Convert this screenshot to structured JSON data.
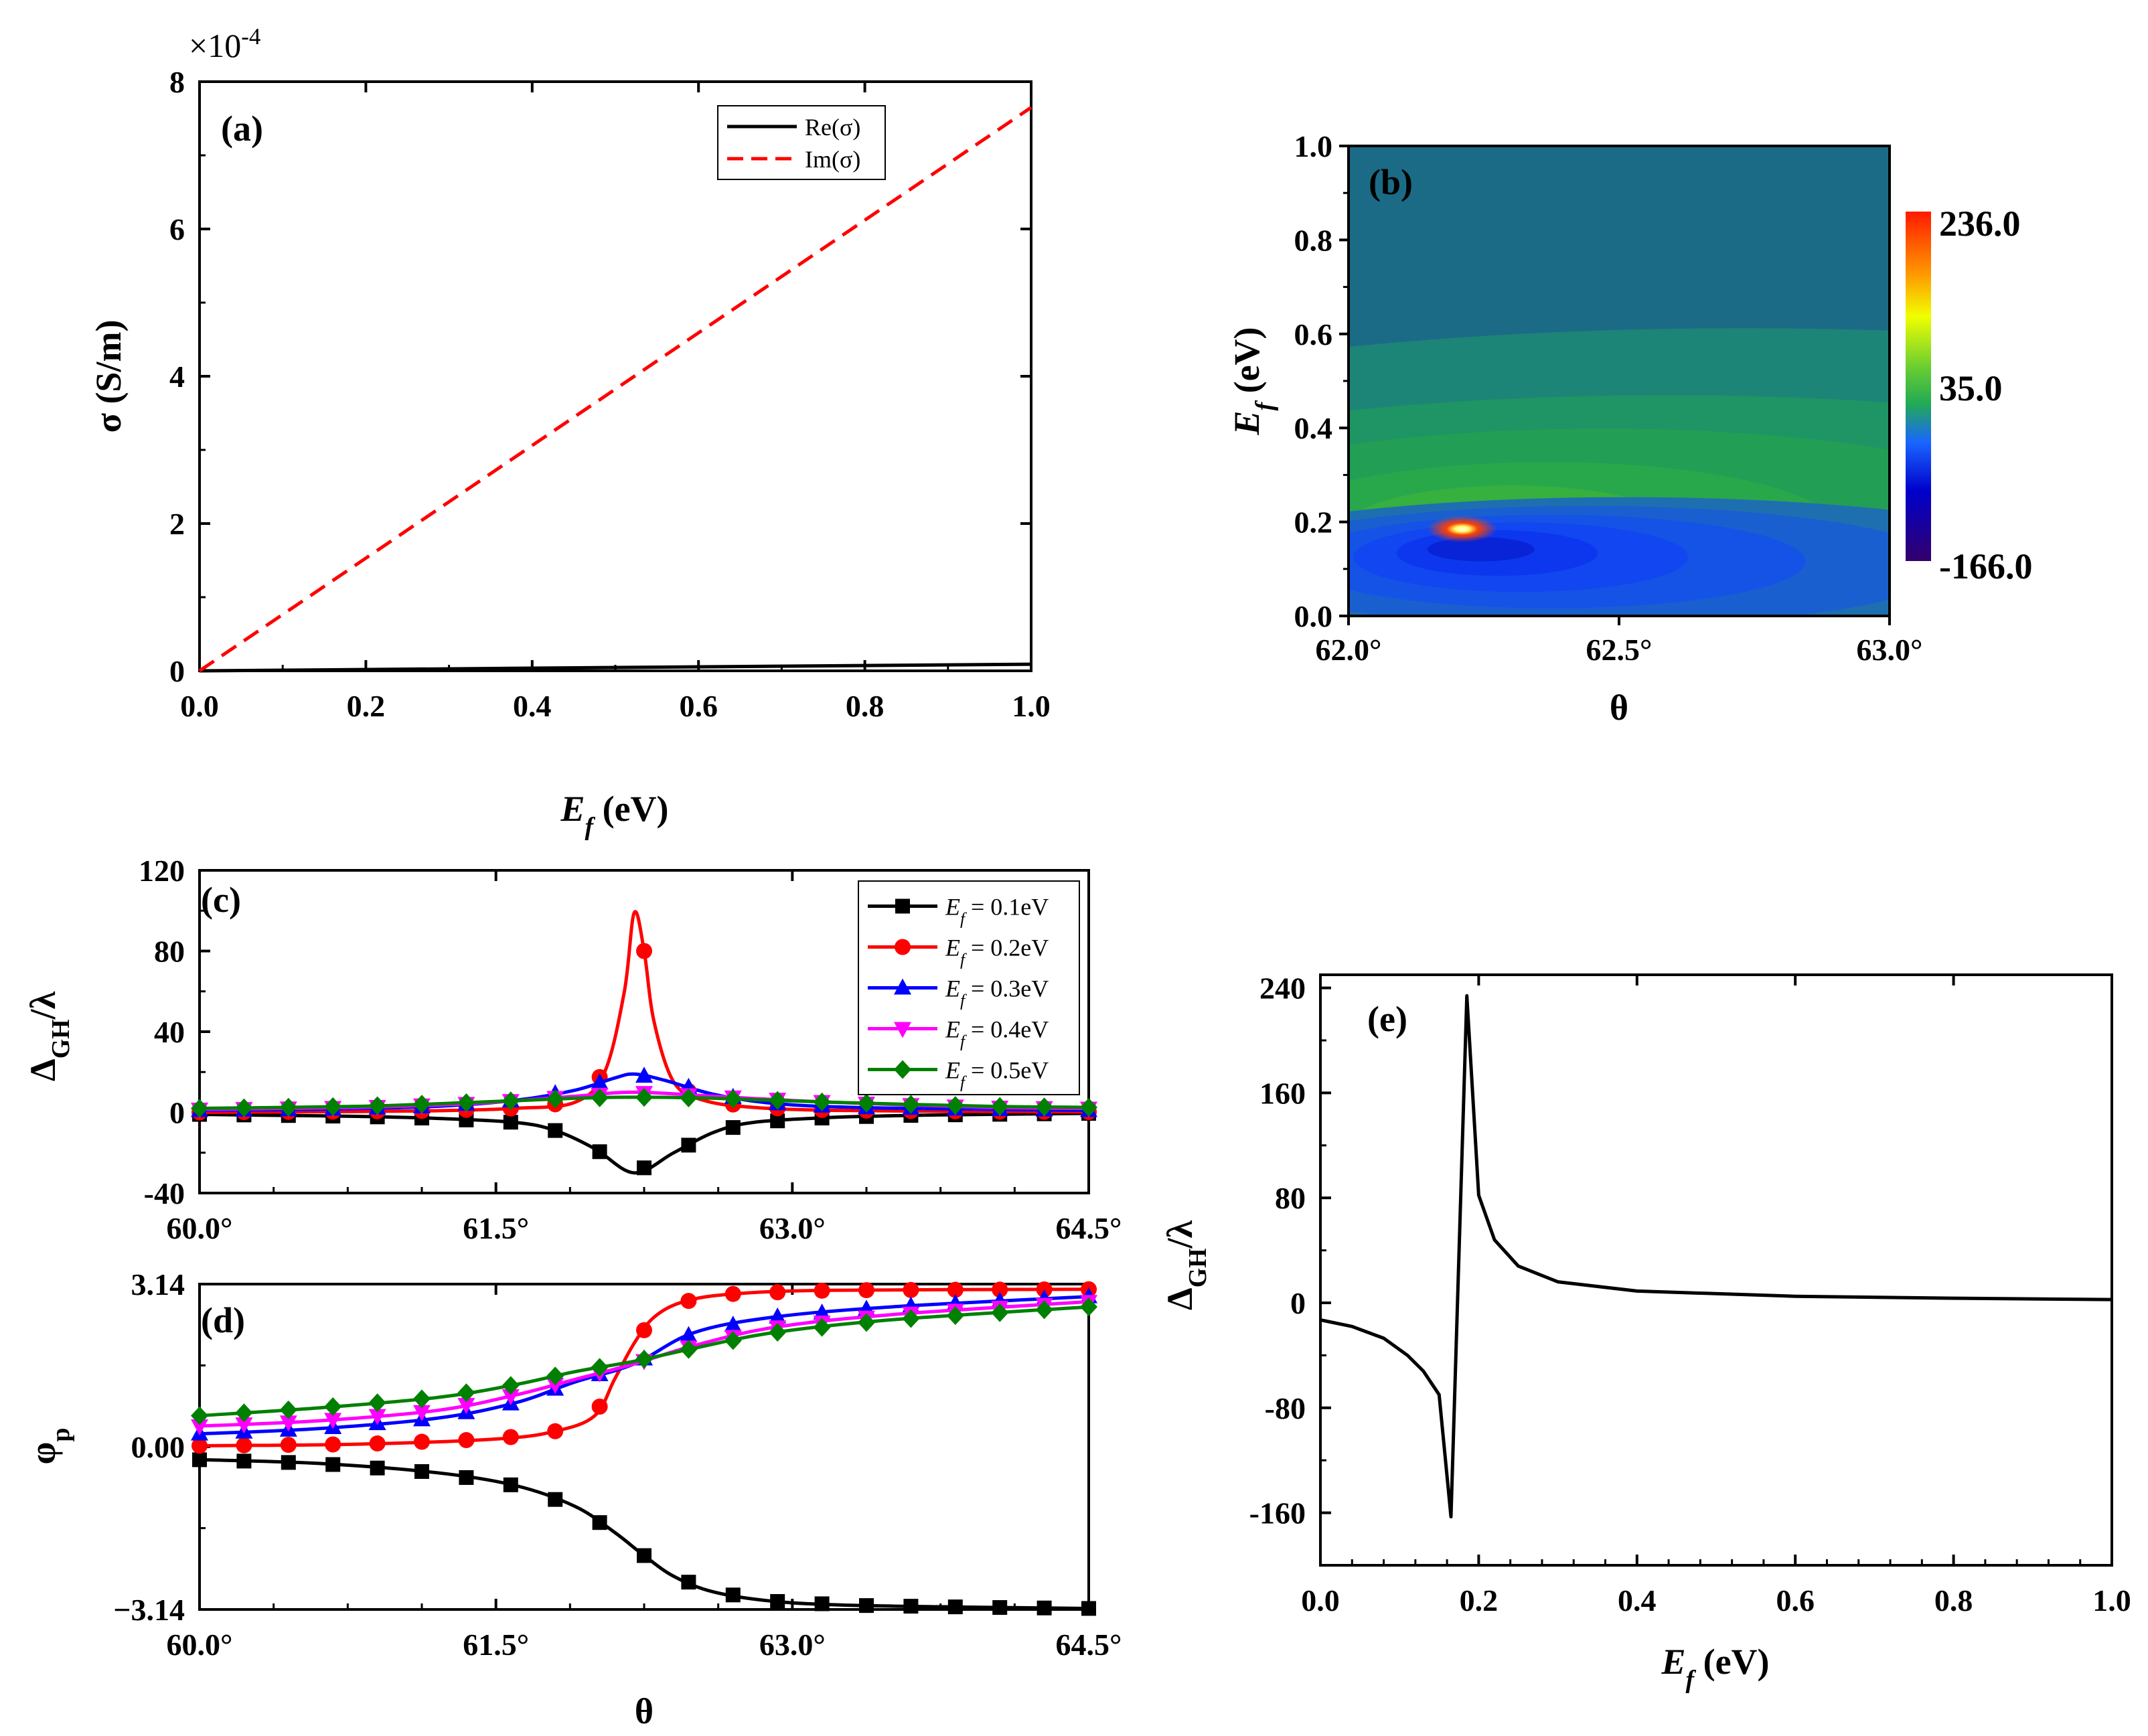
{
  "chart_data": [
    {
      "panel": "(a)",
      "type": "line",
      "xlabel": "E_f (eV)",
      "ylabel": "σ (S/m)",
      "scale_factor_label": "×10^-4",
      "xlim": [
        0,
        1.0
      ],
      "ylim": [
        0,
        8
      ],
      "xticks": [
        "0.0",
        "0.2",
        "0.4",
        "0.6",
        "0.8",
        "1.0"
      ],
      "yticks": [
        "0",
        "2",
        "4",
        "6",
        "8"
      ],
      "legend_position": "top-right",
      "series": [
        {
          "name": "Re(σ)",
          "color": "#000000",
          "style": "solid",
          "x": [
            0,
            1.0
          ],
          "y": [
            0,
            0.09
          ]
        },
        {
          "name": "Im(σ)",
          "color": "#ff0000",
          "style": "dashed",
          "x": [
            0,
            1.0
          ],
          "y": [
            0,
            7.65
          ]
        }
      ]
    },
    {
      "panel": "(b)",
      "type": "heatmap",
      "xlabel": "θ",
      "ylabel": "E_f (eV)",
      "xlim": [
        62.0,
        63.0
      ],
      "ylim": [
        0,
        1.0
      ],
      "xticks": [
        "62.0°",
        "62.5°",
        "63.0°"
      ],
      "yticks": [
        "0.0",
        "0.2",
        "0.4",
        "0.6",
        "0.8",
        "1.0"
      ],
      "colorbar": {
        "max": 236.0,
        "mid": 35.0,
        "min": -166.0,
        "labels": [
          "236.0",
          "35.0",
          "-166.0"
        ]
      },
      "peak": {
        "x": 62.21,
        "y": 0.185
      }
    },
    {
      "panel": "(c)",
      "type": "line",
      "ylabel": "Δ_GH/λ",
      "xlim": [
        60.0,
        64.5
      ],
      "ylim": [
        -40,
        120
      ],
      "xticks": [
        "60.0°",
        "61.5°",
        "63.0°",
        "64.5°"
      ],
      "yticks": [
        "-40",
        "0",
        "40",
        "80",
        "120"
      ],
      "legend_position": "top-right",
      "series": [
        {
          "name": "E_f = 0.1eV",
          "legend": "= 0.1eV",
          "color": "#000000",
          "marker": "square",
          "x": [
            60.0,
            60.4,
            60.8,
            61.2,
            61.6,
            61.8,
            62.0,
            62.2,
            62.4,
            62.6,
            62.8,
            63.2,
            63.6,
            64.0,
            64.5
          ],
          "y": [
            -1,
            -1.5,
            -2,
            -3,
            -5,
            -9,
            -18,
            -30,
            -20,
            -10,
            -5,
            -2.5,
            -1.5,
            -1,
            -0.5
          ]
        },
        {
          "name": "E_f = 0.2eV",
          "legend": "= 0.2eV",
          "color": "#ff0000",
          "marker": "circle",
          "x": [
            60.0,
            60.6,
            61.2,
            61.6,
            61.9,
            62.05,
            62.15,
            62.2,
            62.25,
            62.3,
            62.4,
            62.55,
            62.8,
            63.2,
            64.0,
            64.5
          ],
          "y": [
            0,
            0.3,
            0.8,
            2,
            5,
            20,
            60,
            99,
            80,
            45,
            15,
            6,
            2.5,
            1,
            0.4,
            0.2
          ]
        },
        {
          "name": "E_f = 0.3eV",
          "legend": "= 0.3eV",
          "color": "#0000ff",
          "marker": "triangle-up",
          "x": [
            60.0,
            60.6,
            61.2,
            61.6,
            61.9,
            62.1,
            62.2,
            62.35,
            62.6,
            62.9,
            63.3,
            64.0,
            64.5
          ],
          "y": [
            1,
            1.5,
            3,
            6,
            11,
            17,
            19,
            16,
            9,
            4.5,
            2.5,
            1.5,
            1
          ]
        },
        {
          "name": "E_f = 0.4eV",
          "legend": "= 0.4eV",
          "color": "#ff00ff",
          "marker": "triangle-down",
          "x": [
            60.0,
            60.8,
            61.4,
            61.9,
            62.2,
            62.6,
            63.2,
            64.0,
            64.5
          ],
          "y": [
            1.5,
            2.5,
            4.5,
            8,
            10,
            8,
            5,
            2.5,
            2
          ]
        },
        {
          "name": "E_f = 0.5eV",
          "legend": "= 0.5eV",
          "color": "#008000",
          "marker": "diamond",
          "x": [
            60.0,
            60.8,
            61.4,
            61.9,
            62.2,
            62.6,
            63.2,
            64.0,
            64.5
          ],
          "y": [
            2,
            3,
            5,
            7,
            7.5,
            7,
            5,
            3,
            2.5
          ]
        }
      ]
    },
    {
      "panel": "(d)",
      "type": "line",
      "xlabel": "θ",
      "ylabel": "φ_p",
      "xlim": [
        60.0,
        64.5
      ],
      "ylim": [
        -3.14,
        3.14
      ],
      "xticks": [
        "60.0°",
        "61.5°",
        "63.0°",
        "64.5°"
      ],
      "yticks": [
        "−3.14",
        "0.00",
        "3.14"
      ],
      "series": [
        {
          "name": "E_f = 0.1eV",
          "color": "#000000",
          "marker": "square",
          "x": [
            60.0,
            60.6,
            61.2,
            61.6,
            61.9,
            62.1,
            62.25,
            62.4,
            62.6,
            62.9,
            63.3,
            64.0,
            64.5
          ],
          "y": [
            -0.25,
            -0.32,
            -0.5,
            -0.75,
            -1.15,
            -1.65,
            -2.1,
            -2.5,
            -2.8,
            -2.98,
            -3.06,
            -3.1,
            -3.12
          ]
        },
        {
          "name": "E_f = 0.2eV",
          "color": "#ff0000",
          "marker": "circle",
          "x": [
            60.0,
            60.8,
            61.5,
            61.8,
            62.0,
            62.1,
            62.2,
            62.3,
            62.45,
            62.7,
            63.2,
            64.5
          ],
          "y": [
            0.02,
            0.05,
            0.15,
            0.3,
            0.6,
            1.3,
            2.0,
            2.5,
            2.8,
            2.95,
            3.02,
            3.04
          ]
        },
        {
          "name": "E_f = 0.3eV",
          "color": "#0000ff",
          "marker": "triangle-up",
          "x": [
            60.0,
            60.6,
            61.2,
            61.6,
            61.9,
            62.2,
            62.5,
            62.9,
            63.5,
            64.5
          ],
          "y": [
            0.25,
            0.35,
            0.55,
            0.85,
            1.25,
            1.6,
            2.2,
            2.5,
            2.7,
            2.9
          ]
        },
        {
          "name": "E_f = 0.4eV",
          "color": "#ff00ff",
          "marker": "triangle-down",
          "x": [
            60.0,
            60.6,
            61.2,
            61.6,
            61.9,
            62.2,
            62.5,
            62.9,
            63.5,
            64.5
          ],
          "y": [
            0.4,
            0.5,
            0.7,
            1.0,
            1.3,
            1.6,
            1.95,
            2.3,
            2.55,
            2.8
          ]
        },
        {
          "name": "E_f = 0.5eV",
          "color": "#008000",
          "marker": "diamond",
          "x": [
            60.0,
            60.6,
            61.2,
            61.6,
            61.9,
            62.2,
            62.5,
            62.9,
            63.5,
            64.5
          ],
          "y": [
            0.6,
            0.75,
            0.95,
            1.2,
            1.45,
            1.65,
            1.9,
            2.2,
            2.45,
            2.7
          ]
        }
      ]
    },
    {
      "panel": "(e)",
      "type": "line",
      "xlabel": "E_f (eV)",
      "ylabel": "Δ_GH/λ",
      "xlim": [
        0,
        1.0
      ],
      "ylim": [
        -200,
        250
      ],
      "xticks": [
        "0.0",
        "0.2",
        "0.4",
        "0.6",
        "0.8",
        "1.0"
      ],
      "yticks": [
        "-160",
        "-80",
        "0",
        "80",
        "160",
        "240"
      ],
      "series": [
        {
          "name": "Δ_GH/λ",
          "color": "#000000",
          "x": [
            0,
            0.04,
            0.08,
            0.11,
            0.13,
            0.15,
            0.165,
            0.185,
            0.2,
            0.22,
            0.25,
            0.3,
            0.4,
            0.6,
            0.8,
            1.0
          ],
          "y": [
            -13,
            -18,
            -27,
            -40,
            -52,
            -70,
            -163,
            234,
            82,
            48,
            28,
            16,
            9,
            5,
            3.5,
            2.5
          ]
        }
      ]
    }
  ]
}
